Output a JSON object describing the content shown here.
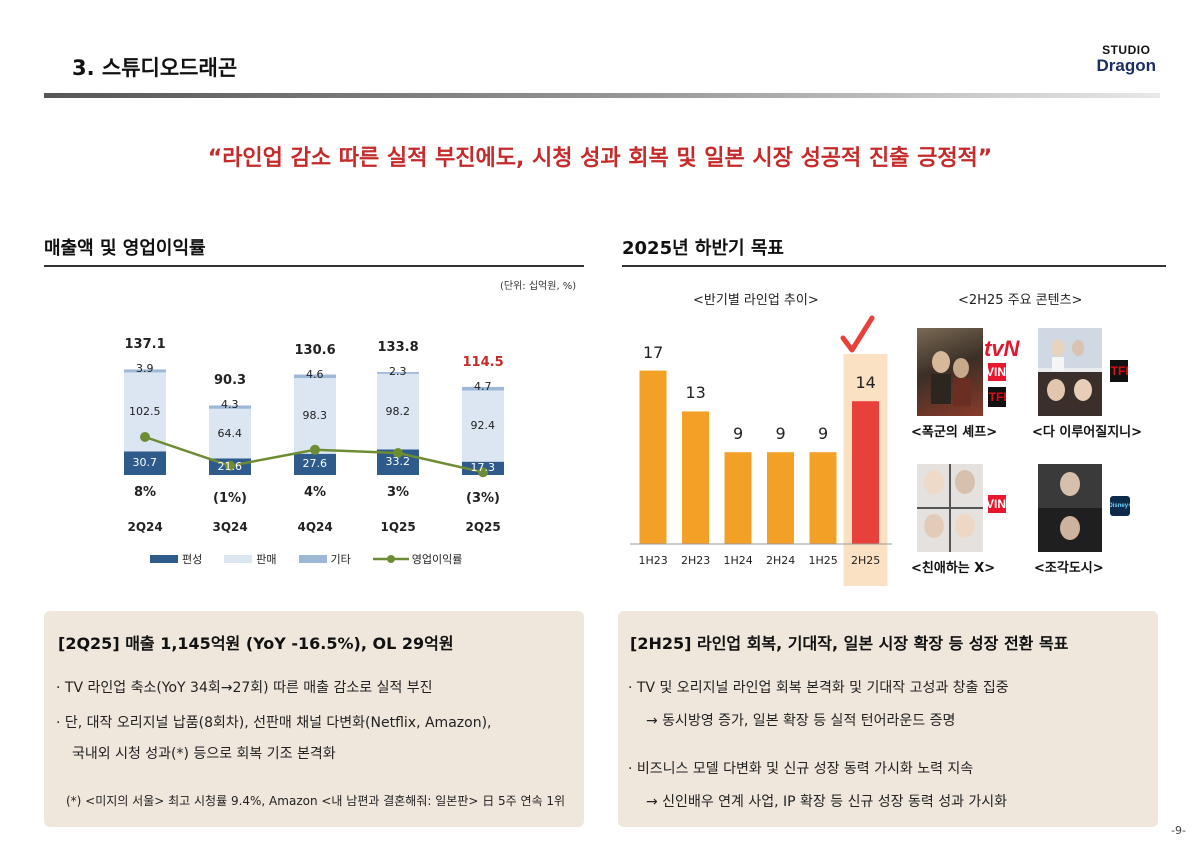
{
  "header": {
    "title": "3. 스튜디오드래곤",
    "logo_line1": "STUDIO",
    "logo_line2": "Dragon"
  },
  "headline": "“라인업 감소 따른 실적 부진에도, 시청 성과 회복 및 일본 시장 성공적 진출 긍정적”",
  "left_section": {
    "title": "매출액 및 영업이익률",
    "unit": "(단위: 십억원, %)",
    "legend": [
      "편성",
      "판매",
      "기타",
      "영업이익률"
    ]
  },
  "right_section": {
    "title": "2025년 하반기 목표",
    "lineup_title": "<반기별 라인업 추이>",
    "contents_title": "<2H25 주요 콘텐츠>",
    "contents": [
      {
        "caption": "<폭군의 셰프>",
        "badges": [
          "tvN",
          "TVING",
          "NETFLIX"
        ]
      },
      {
        "caption": "<다 이루어질지니>",
        "badges": [
          "NETFLIX"
        ]
      },
      {
        "caption": "<친애하는 X>",
        "badges": [
          "TVING"
        ]
      },
      {
        "caption": "<조각도시>",
        "badges": [
          "Disney+"
        ]
      }
    ]
  },
  "chart_data": [
    {
      "type": "bar",
      "title": "매출액 및 영업이익률",
      "categories": [
        "2Q24",
        "3Q24",
        "4Q24",
        "1Q25",
        "2Q25"
      ],
      "series": [
        {
          "name": "편성",
          "values": [
            30.7,
            21.6,
            27.6,
            33.2,
            17.3
          ]
        },
        {
          "name": "판매",
          "values": [
            102.5,
            64.4,
            98.3,
            98.2,
            92.4
          ]
        },
        {
          "name": "기타",
          "values": [
            3.9,
            4.3,
            4.6,
            2.3,
            4.7
          ]
        }
      ],
      "totals": [
        "137.1",
        "90.3",
        "130.6",
        "133.8",
        "114.5"
      ],
      "line_series": {
        "name": "영업이익률",
        "values": [
          8,
          -1,
          4,
          3,
          -3
        ],
        "labels": [
          "8%",
          "(1%)",
          "4%",
          "3%",
          "(3%)"
        ]
      },
      "unit": "십억원, %",
      "stacked": true
    },
    {
      "type": "bar",
      "title": "<반기별 라인업 추이>",
      "categories": [
        "1H23",
        "2H23",
        "1H24",
        "2H24",
        "1H25",
        "2H25"
      ],
      "values": [
        17,
        13,
        9,
        9,
        9,
        14
      ],
      "highlight": "2H25"
    }
  ],
  "summary_left": {
    "title": "[2Q25] 매출 1,145억원 (YoY -16.5%), OL 29억원",
    "bullets": [
      "· TV 라인업 축소(YoY 34회→27회) 따른 매출 감소로 실적 부진",
      "· 단, 대작 오리지널 납품(8회차), 선판매 채널 다변화(Netflix, Amazon),",
      "국내외 시청 성과(*) 등으로 회복 기조 본격화"
    ],
    "footnote": "(*) <미지의 서울> 최고 시청률 9.4%, Amazon <내 남편과 결혼해줘: 일본판> 日 5주 연속 1위"
  },
  "summary_right": {
    "title": "[2H25] 라인업 회복, 기대작, 일본 시장 확장 등 성장 전환 목표",
    "bullets": [
      "· TV 및 오리지널 라인업 회복 본격화 및 기대작 고성과 창출 집중",
      "→ 동시방영 증가, 일본 확장 등 실적 턴어라운드 증명",
      "· 비즈니스 모델 다변화 및 신규 성장 동력 가시화 노력 지속",
      "→ 신인배우 연계 사업, IP 확장 등 신규 성장 동력 성과 가시화"
    ]
  },
  "page_number": "-9-",
  "colors": {
    "headline": "#c62a2a",
    "bar_pyeonseong": "#2e5a8c",
    "bar_panmae": "#dbe6f2",
    "bar_gita": "#9db7d7",
    "line": "#6e8c34",
    "lineup_bar": "#f2a026",
    "lineup_highlight": "#e8413b",
    "lineup_bg": "#fae1c3",
    "box_bg": "#efe7dc"
  }
}
